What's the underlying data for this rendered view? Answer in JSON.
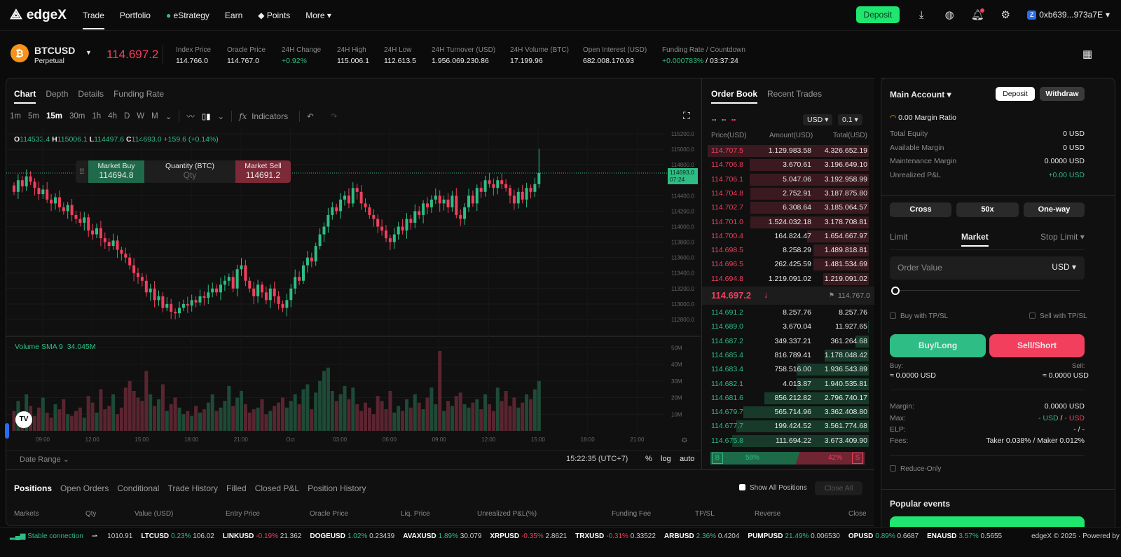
{
  "nav": {
    "brand": "edgeX",
    "items": [
      "Trade",
      "Portfolio",
      "eStrategy",
      "Earn",
      "Points",
      "More"
    ],
    "deposit": "Deposit",
    "wallet": "0xb639...973a7E"
  },
  "ticker": {
    "symbol": "BTCUSD",
    "sub": "Perpetual",
    "price": "114.697.2",
    "stats": [
      {
        "label": "Index Price",
        "value": "114.766.0"
      },
      {
        "label": "Oracle Price",
        "value": "114.767.0"
      },
      {
        "label": "24H Change",
        "value": "+0.92%"
      },
      {
        "label": "24H High",
        "value": "115.006.1"
      },
      {
        "label": "24H Low",
        "value": "112.613.5"
      },
      {
        "label": "24H Turnover (USD)",
        "value": "1.956.069.230.86"
      },
      {
        "label": "24H Volume (BTC)",
        "value": "17.199.96"
      },
      {
        "label": "Open Interest (USD)",
        "value": "682.008.170.93"
      },
      {
        "label": "Funding Rate / Countdown",
        "value": "+0.000783%",
        "value2": " / 03:37:24"
      }
    ]
  },
  "chart": {
    "tabs": [
      "Chart",
      "Depth",
      "Details",
      "Funding Rate"
    ],
    "timeframes": [
      "1m",
      "5m",
      "15m",
      "30m",
      "1h",
      "4h",
      "D",
      "W",
      "M"
    ],
    "active_tf": "15m",
    "indicators": "Indicators",
    "ohlc": {
      "o": "114533.4",
      "h": "115006.1",
      "l": "114497.6",
      "c": "114693.0",
      "chg": "+159.6 (+0.14%)"
    },
    "quick": {
      "buy": "Market Buy",
      "buy_price": "114694.8",
      "qty": "Quantity (BTC)",
      "qty_ph": "Qty",
      "sell": "Market Sell",
      "sell_price": "114691.2"
    },
    "last_label": "114693.0",
    "countdown": "07:24",
    "volume_label": "Volume SMA 9",
    "volume_value": "34.045M",
    "date_range": "Date Range",
    "clock": "15:22:35 (UTC+7)",
    "pct": "%",
    "log": "log",
    "auto": "auto"
  },
  "chart_data": {
    "type": "candlestick",
    "interval": "15m",
    "ylim": [
      112700,
      115250
    ],
    "y_ticks": [
      "115200.0",
      "115000.0",
      "114800.0",
      "114400.0",
      "114200.0",
      "114000.0",
      "113800.0",
      "113600.0",
      "113400.0",
      "113200.0",
      "113000.0",
      "112800.0"
    ],
    "y_tick_values": [
      115200,
      115000,
      114800,
      114400,
      114200,
      114000,
      113800,
      113600,
      113400,
      113200,
      113000,
      112800
    ],
    "x_ticks": [
      "09:00",
      "12:00",
      "15:00",
      "18:00",
      "21:00",
      "Oct",
      "03:00",
      "06:00",
      "09:00",
      "12:00",
      "15:00",
      "18:00",
      "21:00"
    ],
    "vol_ticks": [
      "50M",
      "40M",
      "30M",
      "20M",
      "10M"
    ],
    "vol_tick_values": [
      50,
      40,
      30,
      20,
      10
    ],
    "closes": [
      114450,
      114600,
      114520,
      114650,
      114580,
      114500,
      114420,
      114480,
      114350,
      114300,
      114380,
      114250,
      114200,
      114280,
      114150,
      114100,
      114050,
      114120,
      113950,
      113900,
      113980,
      113850,
      113800,
      113750,
      113820,
      113700,
      113650,
      113600,
      113500,
      113400,
      113350,
      113300,
      113150,
      113200,
      113050,
      113100,
      112950,
      113000,
      112900,
      112880,
      112950,
      113000,
      112980,
      113050,
      113020,
      113100,
      113080,
      113150,
      113200,
      113150,
      113250,
      113300,
      113350,
      113200,
      113450,
      113500,
      113300,
      113200,
      113100,
      113250,
      113150,
      113050,
      113200,
      113100,
      113000,
      112950,
      113050,
      113200,
      113350,
      113300,
      113500,
      113600,
      113550,
      113750,
      113900,
      114000,
      114150,
      114250,
      114200,
      114350,
      114400,
      114300,
      114500,
      114450,
      114300,
      114250,
      114150,
      114100,
      114000,
      113950,
      113850,
      113800,
      113900,
      114000,
      113950,
      114100,
      114050,
      114200,
      114150,
      114300,
      114250,
      114350,
      114400,
      114300,
      114350,
      114250,
      114400,
      114150,
      114100,
      114250,
      114400,
      114300,
      114500,
      114450,
      114600,
      114550,
      114500,
      114600,
      114550,
      114500,
      114400,
      114300,
      114450,
      114350,
      114500,
      114450,
      114550,
      114693
    ],
    "first_open": 114533,
    "last_high": 115006,
    "volumes_m": [
      12,
      18,
      10,
      22,
      15,
      9,
      14,
      20,
      11,
      8,
      16,
      13,
      19,
      10,
      9,
      12,
      14,
      8,
      21,
      17,
      11,
      25,
      13,
      15,
      22,
      10,
      14,
      26,
      30,
      24,
      20,
      18,
      36,
      22,
      15,
      19,
      28,
      12,
      16,
      20,
      14,
      10,
      12,
      9,
      15,
      11,
      13,
      17,
      22,
      12,
      14,
      18,
      27,
      15,
      20,
      24,
      16,
      11,
      13,
      14,
      19,
      10,
      12,
      15,
      17,
      20,
      14,
      18,
      22,
      16,
      25,
      28,
      13,
      23,
      30,
      36,
      38,
      24,
      18,
      22,
      27,
      19,
      26,
      16,
      12,
      17,
      14,
      10,
      21,
      18,
      13,
      24,
      11,
      15,
      12,
      19,
      14,
      22,
      17,
      13,
      20,
      26,
      16,
      48,
      12,
      18,
      15,
      21,
      23,
      16,
      14,
      17,
      19,
      13,
      22,
      16,
      12,
      26,
      18,
      24,
      15,
      20,
      14,
      17,
      22,
      19,
      25,
      30
    ]
  },
  "orderbook": {
    "tabs": [
      "Order Book",
      "Recent Trades"
    ],
    "unit": "USD",
    "step": "0.1",
    "headers": [
      "Price(USD)",
      "Amount(USD)",
      "Total(USD)"
    ],
    "asks": [
      [
        "114.707.5",
        "1.129.983.58",
        "4.326.652.19",
        4326652
      ],
      [
        "114.706.8",
        "3.670.61",
        "3.196.649.10",
        3196649
      ],
      [
        "114.706.1",
        "5.047.06",
        "3.192.958.99",
        3192958
      ],
      [
        "114.704.8",
        "2.752.91",
        "3.187.875.80",
        3187875
      ],
      [
        "114.702.7",
        "6.308.64",
        "3.185.064.57",
        3185064
      ],
      [
        "114.701.0",
        "1.524.032.18",
        "3.178.708.81",
        3178708
      ],
      [
        "114.700.4",
        "164.824.47",
        "1.654.667.97",
        1654667
      ],
      [
        "114.698.5",
        "8.258.29",
        "1.489.818.81",
        1489818
      ],
      [
        "114.696.5",
        "262.425.59",
        "1.481.534.69",
        1481534
      ],
      [
        "114.694.8",
        "1.219.091.02",
        "1.219.091.02",
        1219091
      ]
    ],
    "mid": "114.697.2",
    "mark": "114.767.0",
    "bids": [
      [
        "114.691.2",
        "8.257.76",
        "8.257.76",
        8257
      ],
      [
        "114.689.0",
        "3.670.04",
        "11.927.65",
        11927
      ],
      [
        "114.687.2",
        "349.337.21",
        "361.264.68",
        361264
      ],
      [
        "114.685.4",
        "816.789.41",
        "1.178.048.42",
        1178048
      ],
      [
        "114.683.4",
        "758.516.00",
        "1.936.543.89",
        1936543
      ],
      [
        "114.682.1",
        "4.013.87",
        "1.940.535.81",
        1940535
      ],
      [
        "114.681.6",
        "856.212.82",
        "2.796.740.17",
        2796740
      ],
      [
        "114.679.7",
        "565.714.96",
        "3.362.408.80",
        3362408
      ],
      [
        "114.677.7",
        "199.424.52",
        "3.561.774.68",
        3561774
      ],
      [
        "114.675.8",
        "111.694.22",
        "3.673.409.90",
        3673409
      ]
    ],
    "buy_pct": "58%",
    "sell_pct": "42%",
    "b": "B",
    "s": "S",
    "buy_ratio": 0.58
  },
  "account": {
    "title": "Main Account",
    "deposit": "Deposit",
    "withdraw": "Withdraw",
    "margin_ratio": "0.00 Margin Ratio",
    "rows": [
      [
        "Total Equity",
        "0 USD"
      ],
      [
        "Available Margin",
        "0 USD"
      ],
      [
        "Maintenance Margin",
        "0.0000 USD"
      ],
      [
        "Unrealized P&L",
        "+0.00 USD"
      ]
    ],
    "mode": "Cross",
    "leverage": "50x",
    "position_mode": "One-way"
  },
  "order": {
    "tabs": [
      "Limit",
      "Market",
      "Stop Limit"
    ],
    "placeholder": "Order Value",
    "unit": "USD",
    "buy_tpsl": "Buy with TP/SL",
    "sell_tpsl": "Sell with TP/SL",
    "buy": "Buy/Long",
    "sell": "Sell/Short",
    "buy_label": "Buy:",
    "sell_label": "Sell:",
    "buy_val": "≈ 0.0000 USD",
    "sell_val": "≈ 0.0000 USD",
    "margin_l": "Margin:",
    "margin_v": "0.0000 USD",
    "max_l": "Max:",
    "max_g": "- USD",
    "max_sep": " / ",
    "max_r": "- USD",
    "elp_l": "ELP:",
    "elp_v": "- / -",
    "fees_l": "Fees:",
    "fees_v": "Taker 0.038% / Maker 0.012%",
    "reduce": "Reduce-Only",
    "popular": "Popular events"
  },
  "positions": {
    "tabs": [
      "Positions",
      "Open Orders",
      "Conditional",
      "Trade History",
      "Filled",
      "Closed P&L",
      "Position History"
    ],
    "show_all": "Show All Positions",
    "close_all": "Close All",
    "cols": [
      "Markets",
      "Qty",
      "Value (USD)",
      "Entry Price",
      "Oracle Price",
      "Liq. Price",
      "Unrealized P&L(%)",
      "Funding Fee",
      "TP/SL",
      "Reverse",
      "Close"
    ]
  },
  "footer": {
    "status": "Stable connection",
    "first": "1010.91",
    "items": [
      [
        "LTCUSD",
        "0.23%",
        "106.02",
        "g"
      ],
      [
        "LINKUSD",
        "-0.19%",
        "21.362",
        "r"
      ],
      [
        "DOGEUSD",
        "1.02%",
        "0.23439",
        "g"
      ],
      [
        "AVAXUSD",
        "1.89%",
        "30.079",
        "g"
      ],
      [
        "XRPUSD",
        "-0.35%",
        "2.8621",
        "r"
      ],
      [
        "TRXUSD",
        "-0.31%",
        "0.33522",
        "r"
      ],
      [
        "ARBUSD",
        "2.36%",
        "0.4204",
        "g"
      ],
      [
        "PUMPUSD",
        "21.49%",
        "0.006530",
        "g"
      ],
      [
        "OPUSD",
        "0.89%",
        "0.6687",
        "g"
      ],
      [
        "ENAUSD",
        "3.57%",
        "0.5655",
        "g"
      ]
    ],
    "copyright": "edgeX © 2025 · Powered by StarkWare"
  },
  "colors": {
    "green": "#2ebd85",
    "red": "#f23f5d",
    "deposit": "#1ee66f"
  }
}
